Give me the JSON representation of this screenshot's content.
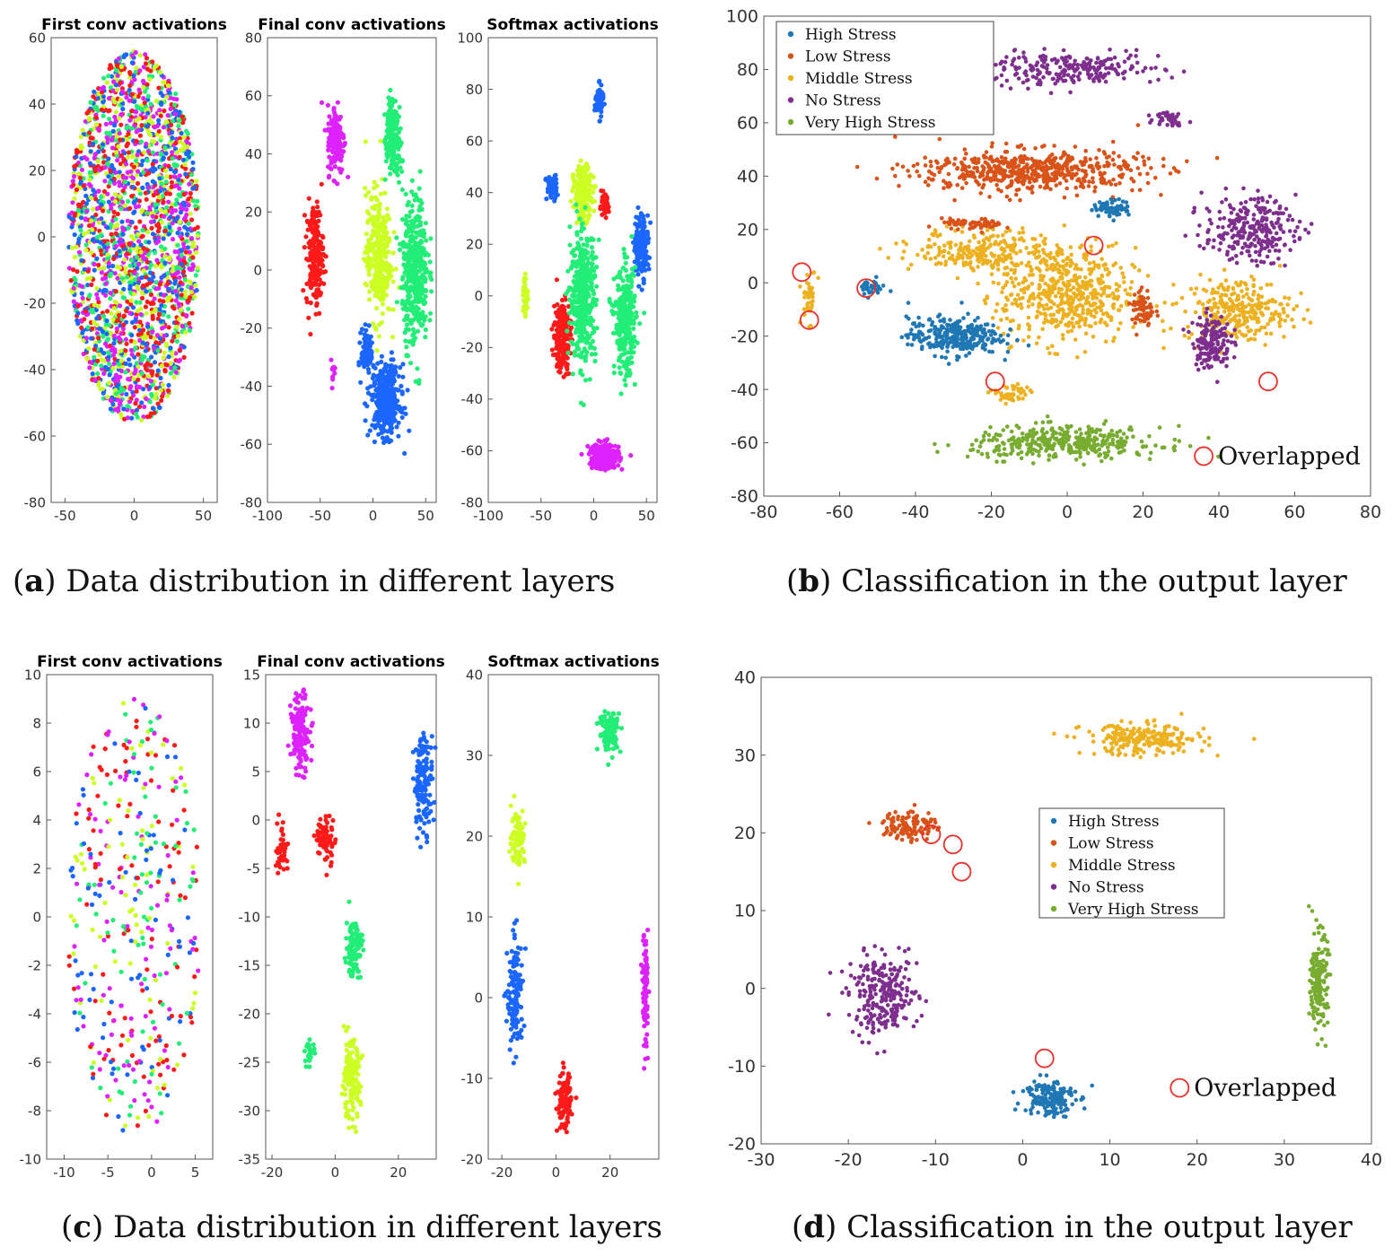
{
  "captions": {
    "a": {
      "letter": "a",
      "text": ") Data distribution in different layers"
    },
    "b": {
      "letter": "b",
      "text": ") Classification in the output layer"
    },
    "c": {
      "letter": "c",
      "text": ") Data distribution in different layers"
    },
    "d": {
      "letter": "d",
      "text": ") Classification in the output layer"
    }
  },
  "colors": {
    "activation_palette": [
      "#ff1a1a",
      "#1a66ff",
      "#22ee77",
      "#ccff22",
      "#dd22ff"
    ],
    "classes": {
      "High Stress": "#1f77b4",
      "Low Stress": "#d95319",
      "Middle Stress": "#edb120",
      "No Stress": "#7e2f8e",
      "Very High Stress": "#77ac30"
    },
    "overlap": "#e8302a"
  },
  "chart_data": [
    {
      "id": "a1",
      "type": "scatter",
      "title": "First conv activations",
      "xlim": [
        -60,
        60
      ],
      "ylim": [
        -80,
        60
      ],
      "xticks": [
        -50,
        0,
        50
      ],
      "yticks": [
        -80,
        -60,
        -40,
        -20,
        0,
        20,
        40,
        60
      ],
      "clusters": [
        {
          "cx": 0,
          "cy": 0,
          "sx": 50,
          "sy": 56,
          "n": 2200,
          "mix": true,
          "shape": "ellipse"
        }
      ]
    },
    {
      "id": "a2",
      "type": "scatter",
      "title": "Final conv activations",
      "xlim": [
        -100,
        60
      ],
      "ylim": [
        -80,
        80
      ],
      "xticks": [
        -100,
        -50,
        0,
        50
      ],
      "yticks": [
        -80,
        -60,
        -40,
        -20,
        0,
        20,
        40,
        60,
        80
      ],
      "clusters": [
        {
          "cx": -35,
          "cy": 45,
          "sx": 8,
          "sy": 12,
          "n": 160,
          "c": 4
        },
        {
          "cx": 18,
          "cy": 52,
          "sx": 6,
          "sy": 8,
          "n": 90,
          "c": 2
        },
        {
          "cx": -55,
          "cy": 5,
          "sx": 8,
          "sy": 18,
          "n": 200,
          "c": 0
        },
        {
          "cx": 5,
          "cy": 5,
          "sx": 12,
          "sy": 22,
          "n": 300,
          "c": 3
        },
        {
          "cx": 40,
          "cy": 0,
          "sx": 12,
          "sy": 25,
          "n": 420,
          "c": 2
        },
        {
          "cx": 20,
          "cy": 40,
          "sx": 10,
          "sy": 10,
          "n": 100,
          "c": 2
        },
        {
          "cx": 12,
          "cy": -45,
          "sx": 14,
          "sy": 12,
          "n": 360,
          "c": 1
        },
        {
          "cx": -5,
          "cy": -28,
          "sx": 6,
          "sy": 8,
          "n": 90,
          "c": 1
        },
        {
          "cx": -38,
          "cy": -35,
          "sx": 3,
          "sy": 4,
          "n": 12,
          "c": 4
        }
      ]
    },
    {
      "id": "a3",
      "type": "scatter",
      "title": "Softmax activations",
      "xlim": [
        -100,
        60
      ],
      "ylim": [
        -80,
        100
      ],
      "xticks": [
        -100,
        -50,
        0,
        50
      ],
      "yticks": [
        -80,
        -60,
        -40,
        -20,
        0,
        20,
        40,
        60,
        80,
        100
      ],
      "clusters": [
        {
          "cx": 5,
          "cy": 75,
          "sx": 4,
          "sy": 6,
          "n": 60,
          "c": 1
        },
        {
          "cx": -40,
          "cy": 42,
          "sx": 5,
          "sy": 5,
          "n": 60,
          "c": 1
        },
        {
          "cx": -10,
          "cy": 40,
          "sx": 9,
          "sy": 10,
          "n": 220,
          "c": 3
        },
        {
          "cx": 45,
          "cy": 20,
          "sx": 7,
          "sy": 12,
          "n": 160,
          "c": 1
        },
        {
          "cx": -30,
          "cy": -15,
          "sx": 8,
          "sy": 14,
          "n": 220,
          "c": 0
        },
        {
          "cx": 10,
          "cy": 35,
          "sx": 4,
          "sy": 4,
          "n": 50,
          "c": 0
        },
        {
          "cx": -10,
          "cy": 0,
          "sx": 12,
          "sy": 25,
          "n": 420,
          "c": 2
        },
        {
          "cx": 30,
          "cy": -10,
          "sx": 10,
          "sy": 20,
          "n": 300,
          "c": 2
        },
        {
          "cx": 10,
          "cy": -62,
          "sx": 14,
          "sy": 5,
          "n": 240,
          "c": 4
        },
        {
          "cx": -65,
          "cy": 0,
          "sx": 3,
          "sy": 8,
          "n": 40,
          "c": 3
        }
      ]
    },
    {
      "id": "b",
      "type": "scatter",
      "title": "",
      "xlim": [
        -80,
        80
      ],
      "ylim": [
        -80,
        100
      ],
      "xticks": [
        -80,
        -60,
        -40,
        -20,
        0,
        20,
        40,
        60,
        80
      ],
      "yticks": [
        -80,
        -60,
        -40,
        -20,
        0,
        20,
        40,
        60,
        80,
        100
      ],
      "legend": [
        "High Stress",
        "Low Stress",
        "Middle Stress",
        "No Stress",
        "Very High Stress"
      ],
      "legend_position": "top-left",
      "annotation": "Overlapped",
      "clusters": [
        {
          "cx": 0,
          "cy": 80,
          "sx": 25,
          "sy": 6,
          "n": 240,
          "c": 3
        },
        {
          "cx": 27,
          "cy": 62,
          "sx": 4,
          "sy": 3,
          "n": 40,
          "c": 3
        },
        {
          "cx": -10,
          "cy": 42,
          "sx": 30,
          "sy": 8,
          "n": 560,
          "c": 1
        },
        {
          "cx": 48,
          "cy": 20,
          "sx": 12,
          "sy": 12,
          "n": 260,
          "c": 3
        },
        {
          "cx": -20,
          "cy": 12,
          "sx": 20,
          "sy": 8,
          "n": 260,
          "c": 2
        },
        {
          "cx": 0,
          "cy": -5,
          "sx": 18,
          "sy": 18,
          "n": 520,
          "c": 2
        },
        {
          "cx": 45,
          "cy": -10,
          "sx": 14,
          "sy": 12,
          "n": 280,
          "c": 2
        },
        {
          "cx": -30,
          "cy": -20,
          "sx": 12,
          "sy": 7,
          "n": 300,
          "c": 0
        },
        {
          "cx": 12,
          "cy": 28,
          "sx": 5,
          "sy": 3,
          "n": 70,
          "c": 0
        },
        {
          "cx": 38,
          "cy": -22,
          "sx": 5,
          "sy": 10,
          "n": 160,
          "c": 3
        },
        {
          "cx": 20,
          "cy": -10,
          "sx": 3,
          "sy": 8,
          "n": 70,
          "c": 1
        },
        {
          "cx": -25,
          "cy": 22,
          "sx": 8,
          "sy": 2,
          "n": 60,
          "c": 1
        },
        {
          "cx": 0,
          "cy": -60,
          "sx": 25,
          "sy": 6,
          "n": 380,
          "c": 4
        },
        {
          "cx": -68,
          "cy": -5,
          "sx": 2,
          "sy": 10,
          "n": 40,
          "c": 2
        },
        {
          "cx": -52,
          "cy": -2,
          "sx": 4,
          "sy": 3,
          "n": 30,
          "c": 0
        },
        {
          "cx": -15,
          "cy": -42,
          "sx": 5,
          "sy": 4,
          "n": 50,
          "c": 2
        }
      ],
      "overlaps": [
        [
          -70,
          4
        ],
        [
          -68,
          -14
        ],
        [
          -53,
          -2
        ],
        [
          7,
          14
        ],
        [
          -19,
          -37
        ],
        [
          53,
          -37
        ]
      ]
    },
    {
      "id": "c1",
      "type": "scatter",
      "title": "First conv activations",
      "xlim": [
        -12,
        7
      ],
      "ylim": [
        -10,
        10
      ],
      "xticks": [
        -10,
        -5,
        0,
        5
      ],
      "yticks": [
        -10,
        -8,
        -6,
        -4,
        -2,
        0,
        2,
        4,
        6,
        8,
        10
      ],
      "clusters": [
        {
          "cx": -2,
          "cy": 0,
          "sx": 8,
          "sy": 9,
          "n": 420,
          "mix": true,
          "shape": "ellipse"
        }
      ]
    },
    {
      "id": "c2",
      "type": "scatter",
      "title": "Final conv activations",
      "xlim": [
        -22,
        32
      ],
      "ylim": [
        -35,
        15
      ],
      "xticks": [
        -20,
        0,
        20
      ],
      "yticks": [
        -35,
        -30,
        -25,
        -20,
        -15,
        -10,
        -5,
        0,
        5,
        10,
        15
      ],
      "clusters": [
        {
          "cx": -11,
          "cy": 9,
          "sx": 3,
          "sy": 4,
          "n": 140,
          "c": 4
        },
        {
          "cx": 28,
          "cy": 4,
          "sx": 3,
          "sy": 5,
          "n": 140,
          "c": 1
        },
        {
          "cx": -17,
          "cy": -3,
          "sx": 2,
          "sy": 3,
          "n": 40,
          "c": 0
        },
        {
          "cx": -3,
          "cy": -2,
          "sx": 3,
          "sy": 2.5,
          "n": 70,
          "c": 0
        },
        {
          "cx": 6,
          "cy": -13,
          "sx": 2.5,
          "sy": 3,
          "n": 120,
          "c": 2
        },
        {
          "cx": 5,
          "cy": -27,
          "sx": 3,
          "sy": 4,
          "n": 160,
          "c": 3
        },
        {
          "cx": -8,
          "cy": -24,
          "sx": 1.5,
          "sy": 1.2,
          "n": 25,
          "c": 2
        }
      ]
    },
    {
      "id": "c3",
      "type": "scatter",
      "title": "Softmax activations",
      "xlim": [
        -25,
        38
      ],
      "ylim": [
        -20,
        40
      ],
      "xticks": [
        -20,
        0,
        20
      ],
      "yticks": [
        -20,
        -10,
        0,
        10,
        20,
        30,
        40
      ],
      "clusters": [
        {
          "cx": 20,
          "cy": 33,
          "sx": 4,
          "sy": 2.5,
          "n": 110,
          "c": 2
        },
        {
          "cx": -14,
          "cy": 20,
          "sx": 2.5,
          "sy": 3.5,
          "n": 90,
          "c": 3
        },
        {
          "cx": -15,
          "cy": 0,
          "sx": 3,
          "sy": 7,
          "n": 130,
          "c": 1
        },
        {
          "cx": 33,
          "cy": 1,
          "sx": 1,
          "sy": 7,
          "n": 90,
          "c": 4
        },
        {
          "cx": 3,
          "cy": -13,
          "sx": 2.5,
          "sy": 3.5,
          "n": 110,
          "c": 0
        }
      ]
    },
    {
      "id": "d",
      "type": "scatter",
      "title": "",
      "xlim": [
        -30,
        40
      ],
      "ylim": [
        -20,
        40
      ],
      "xticks": [
        -30,
        -20,
        -10,
        0,
        10,
        20,
        30,
        40
      ],
      "yticks": [
        -20,
        -10,
        0,
        10,
        20,
        30,
        40
      ],
      "legend": [
        "High Stress",
        "Low Stress",
        "Middle Stress",
        "No Stress",
        "Very High Stress"
      ],
      "legend_position": "center",
      "annotation": "Overlapped",
      "clusters": [
        {
          "cx": 14,
          "cy": 32,
          "sx": 7,
          "sy": 2,
          "n": 230,
          "c": 2
        },
        {
          "cx": -13,
          "cy": 21,
          "sx": 3,
          "sy": 2,
          "n": 120,
          "c": 1
        },
        {
          "cx": -16,
          "cy": -1,
          "sx": 4,
          "sy": 5,
          "n": 260,
          "c": 3
        },
        {
          "cx": 3,
          "cy": -14,
          "sx": 3,
          "sy": 2.5,
          "n": 160,
          "c": 0
        },
        {
          "cx": 34,
          "cy": 1,
          "sx": 1,
          "sy": 6,
          "n": 180,
          "c": 4
        }
      ],
      "overlaps": [
        [
          -10.5,
          19.8
        ],
        [
          -8,
          18.5
        ],
        [
          -7,
          15
        ],
        [
          2.5,
          -9
        ]
      ]
    }
  ]
}
